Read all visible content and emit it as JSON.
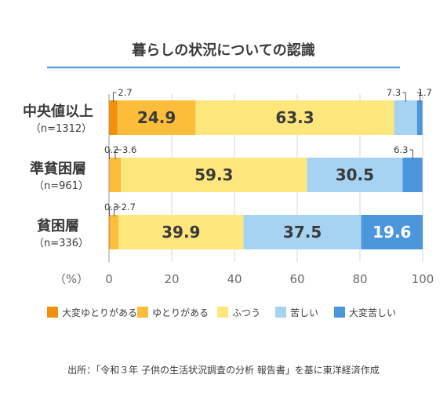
{
  "chart_data": {
    "type": "bar",
    "orientation": "horizontal",
    "stacked": true,
    "title": "暮らしの状況についての認識",
    "unit_label": "（%）",
    "xlim": [
      0,
      100
    ],
    "xticks": [
      "0",
      "20",
      "40",
      "60",
      "80",
      "100"
    ],
    "categories": [
      {
        "name": "中央値以上",
        "n": "（n=1312）"
      },
      {
        "name": "準貧困層",
        "n": "（n=961）"
      },
      {
        "name": "貧困層",
        "n": "（n=336）"
      }
    ],
    "series": [
      {
        "name": "大変ゆとりがある",
        "color": "#f0900c",
        "values": [
          2.7,
          0.2,
          0.3
        ]
      },
      {
        "name": "ゆとりがある",
        "color": "#fbbd3a",
        "values": [
          24.9,
          3.6,
          2.7
        ]
      },
      {
        "name": "ふつう",
        "color": "#fde67c",
        "values": [
          63.3,
          59.3,
          39.9
        ]
      },
      {
        "name": "苦しい",
        "color": "#a7d3f2",
        "values": [
          7.3,
          30.5,
          37.5
        ]
      },
      {
        "name": "大変苦しい",
        "color": "#4c97db",
        "values": [
          1.7,
          6.3,
          19.6
        ]
      }
    ],
    "source": "出所：「令和３年 子供の生活状況調査の分析 報告書」を基に東洋経済作成"
  }
}
